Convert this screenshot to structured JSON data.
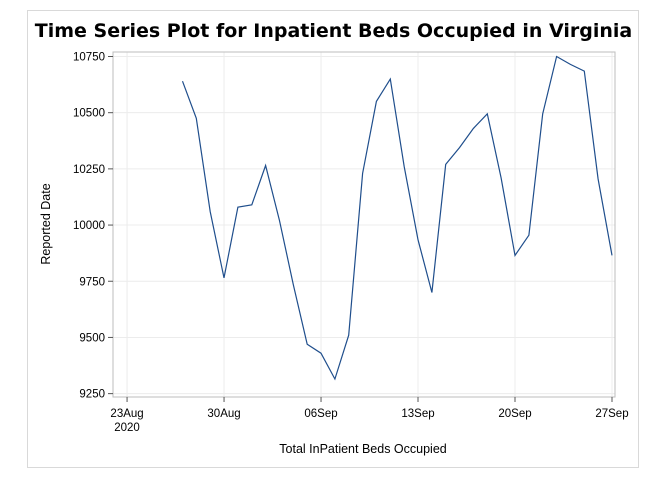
{
  "chart_data": {
    "type": "line",
    "title": "Time Series Plot for Inpatient Beds Occupied in Virginia",
    "xlabel": "Total InPatient Beds Occupied",
    "ylabel": "Reported Date",
    "x_ticks": [
      {
        "date": "2020-08-23",
        "label": "23Aug",
        "sublabel": "2020"
      },
      {
        "date": "2020-08-30",
        "label": "30Aug",
        "sublabel": ""
      },
      {
        "date": "2020-09-06",
        "label": "06Sep",
        "sublabel": ""
      },
      {
        "date": "2020-09-13",
        "label": "13Sep",
        "sublabel": ""
      },
      {
        "date": "2020-09-20",
        "label": "20Sep",
        "sublabel": ""
      },
      {
        "date": "2020-09-27",
        "label": "27Sep",
        "sublabel": ""
      }
    ],
    "xlim": [
      "2020-08-23",
      "2020-09-27"
    ],
    "y_ticks": [
      9250,
      9500,
      9750,
      10000,
      10250,
      10500,
      10750
    ],
    "ylim": [
      9235,
      10770
    ],
    "grid": true,
    "line_color": "#1f4e8c",
    "series": [
      {
        "x": [
          "2020-08-27",
          "2020-08-28",
          "2020-08-29",
          "2020-08-30",
          "2020-08-31",
          "2020-09-01",
          "2020-09-02",
          "2020-09-03",
          "2020-09-04",
          "2020-09-05",
          "2020-09-06",
          "2020-09-07",
          "2020-09-08",
          "2020-09-09",
          "2020-09-10",
          "2020-09-11",
          "2020-09-12",
          "2020-09-13",
          "2020-09-14",
          "2020-09-15",
          "2020-09-16",
          "2020-09-17",
          "2020-09-18",
          "2020-09-19",
          "2020-09-20",
          "2020-09-21",
          "2020-09-22",
          "2020-09-23",
          "2020-09-24",
          "2020-09-25",
          "2020-09-26",
          "2020-09-27"
        ],
        "y": [
          10640,
          10475,
          10060,
          9765,
          10080,
          10090,
          10265,
          10020,
          9735,
          9470,
          9430,
          9315,
          9510,
          10230,
          10550,
          10650,
          10260,
          9935,
          9700,
          10270,
          10345,
          10430,
          10495,
          10210,
          9865,
          9955,
          10495,
          10750,
          10715,
          10685,
          10205,
          9865
        ]
      }
    ]
  }
}
